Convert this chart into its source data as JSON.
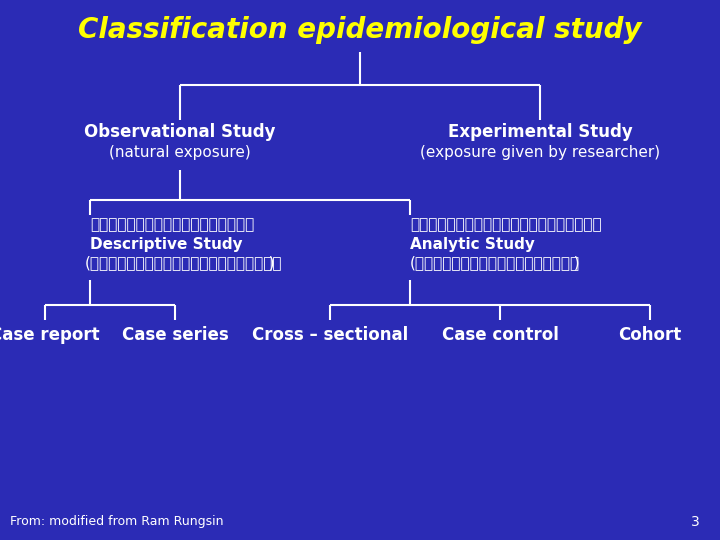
{
  "title": "Classification epidemiological study",
  "title_color": "#FFFF00",
  "title_fontsize": 20,
  "bg_color": "#2B2BB5",
  "line_color": "#FFFFFF",
  "text_color": "#FFFFFF",
  "thai_desc": "การศึกษาเชิงพรรณนา",
  "thai_analytic": "การศึกษาเชิงวิเคราะห์",
  "thai_no_group": "(ไม่มีกลุ่มเปรียบเทียบ",
  "thai_has_group": "(มีกลุ่มเปรียบเทียบ",
  "footnote": "From: modified from Ram Rungsin",
  "page_num": "3"
}
